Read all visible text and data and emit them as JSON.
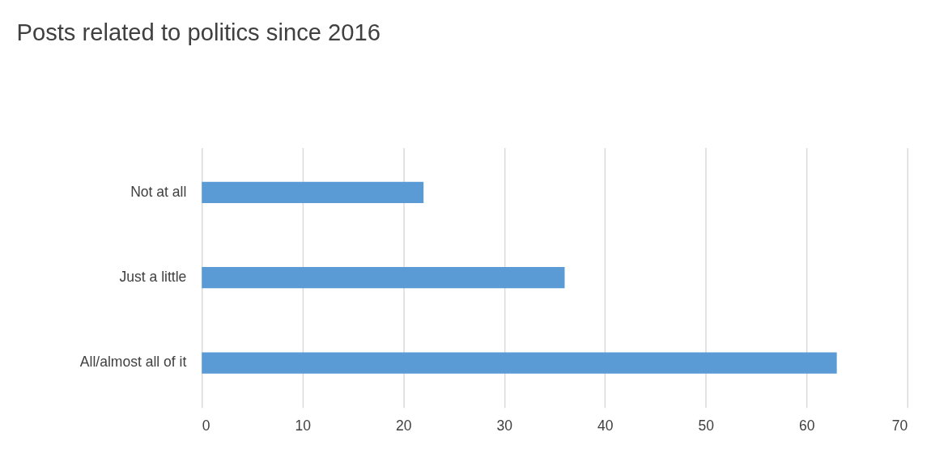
{
  "chart_data": {
    "type": "bar",
    "title": "Posts related to politics since 2016",
    "orientation": "horizontal",
    "categories": [
      "Not at all",
      "Just a little",
      "All/almost all of it"
    ],
    "values": [
      22,
      36,
      63
    ],
    "color": "#5b9bd5",
    "xlim": [
      0,
      70
    ],
    "xticks": [
      0,
      10,
      20,
      30,
      40,
      50,
      60,
      70
    ],
    "grid": "x"
  }
}
